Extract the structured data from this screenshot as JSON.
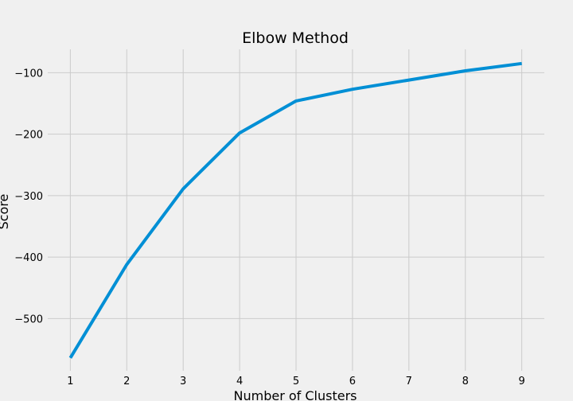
{
  "chart_data": {
    "type": "line",
    "title": "Elbow Method",
    "xlabel": "Number of Clusters",
    "ylabel": "Score",
    "x": [
      1,
      2,
      3,
      4,
      5,
      6,
      7,
      8,
      9
    ],
    "series": [
      {
        "values": [
          -564,
          -412,
          -289,
          -198,
          -146,
          -127,
          -112,
          -97,
          -85
        ]
      }
    ],
    "xticks": [
      1,
      2,
      3,
      4,
      5,
      6,
      7,
      8,
      9
    ],
    "yticks": [
      -500,
      -400,
      -300,
      -200,
      -100
    ],
    "ytick_labels": [
      "−500",
      "−400",
      "−300",
      "−200",
      "−100"
    ],
    "xlim": [
      0.6,
      9.4
    ],
    "ylim": [
      -585,
      -62
    ],
    "grid": true,
    "colors": {
      "line": "#008fd5",
      "grid": "#cbcbcb",
      "background": "#f0f0f0"
    }
  }
}
